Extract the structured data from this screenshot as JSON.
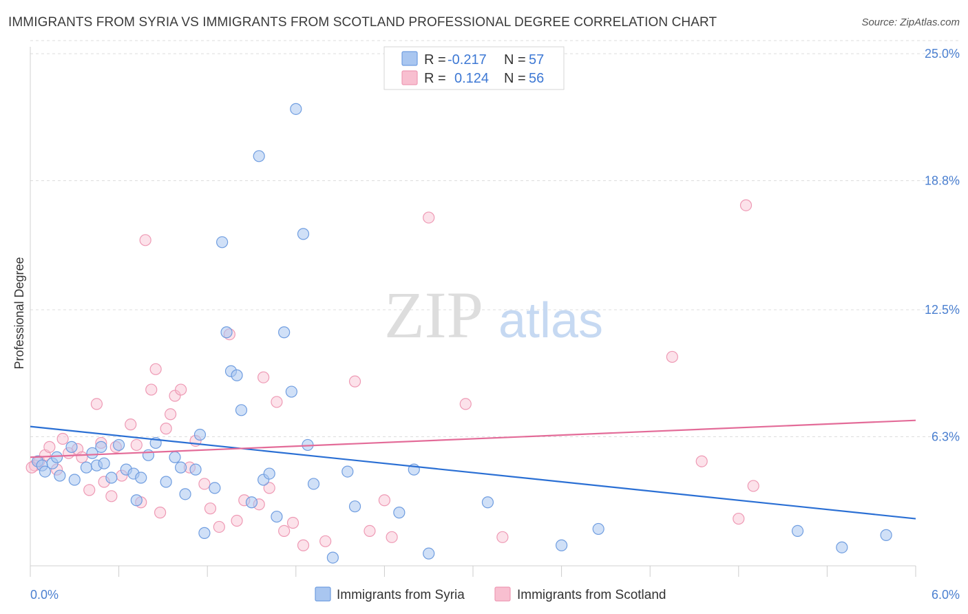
{
  "title": "IMMIGRANTS FROM SYRIA VS IMMIGRANTS FROM SCOTLAND PROFESSIONAL DEGREE CORRELATION CHART",
  "source": "Source: ZipAtlas.com",
  "watermark": {
    "zip": "ZIP",
    "atlas": "atlas"
  },
  "colors": {
    "syria_fill": "#a9c6f0",
    "syria_stroke": "#6f9de0",
    "syria_line": "#2a6fd4",
    "scotland_fill": "#f8bfd0",
    "scotland_stroke": "#ee99b4",
    "scotland_line": "#e36b98",
    "tick_text": "#4a7fd0",
    "grid": "#dcdcdc"
  },
  "legend": {
    "rows": [
      {
        "r_label": "R =",
        "r_value": "-0.217",
        "n_label": "N =",
        "n_value": "57"
      },
      {
        "r_label": "R =",
        "r_value": "0.124",
        "n_label": "N =",
        "n_value": "56"
      }
    ]
  },
  "chart_data": {
    "type": "scatter",
    "title": "IMMIGRANTS FROM SYRIA VS IMMIGRANTS FROM SCOTLAND PROFESSIONAL DEGREE CORRELATION CHART",
    "xlabel": "",
    "ylabel": "Professional Degree",
    "xlim": [
      0.0,
      6.0
    ],
    "ylim": [
      0.0,
      25.0
    ],
    "x_tick_labels": [
      "0.0%",
      "6.0%"
    ],
    "y_ticks": [
      6.3,
      12.5,
      18.8,
      25.0
    ],
    "y_tick_labels": [
      "6.3%",
      "12.5%",
      "18.8%",
      "25.0%"
    ],
    "grid": true,
    "legend_position": "top-center",
    "series": [
      {
        "name": "Immigrants from Syria",
        "trend": {
          "x": [
            0.0,
            6.0
          ],
          "y": [
            6.8,
            2.3
          ]
        },
        "points": [
          [
            0.05,
            5.1
          ],
          [
            0.08,
            4.9
          ],
          [
            0.1,
            4.6
          ],
          [
            0.15,
            5.0
          ],
          [
            0.18,
            5.3
          ],
          [
            0.2,
            4.4
          ],
          [
            0.28,
            5.8
          ],
          [
            0.3,
            4.2
          ],
          [
            0.38,
            4.8
          ],
          [
            0.42,
            5.5
          ],
          [
            0.45,
            4.9
          ],
          [
            0.48,
            5.8
          ],
          [
            0.5,
            5.0
          ],
          [
            0.55,
            4.3
          ],
          [
            0.6,
            5.9
          ],
          [
            0.65,
            4.7
          ],
          [
            0.7,
            4.5
          ],
          [
            0.72,
            3.2
          ],
          [
            0.75,
            4.3
          ],
          [
            0.8,
            5.4
          ],
          [
            0.85,
            6.0
          ],
          [
            0.92,
            4.1
          ],
          [
            0.98,
            5.3
          ],
          [
            1.02,
            4.8
          ],
          [
            1.05,
            3.5
          ],
          [
            1.12,
            4.7
          ],
          [
            1.15,
            6.4
          ],
          [
            1.18,
            1.6
          ],
          [
            1.25,
            3.8
          ],
          [
            1.3,
            15.8
          ],
          [
            1.33,
            11.4
          ],
          [
            1.36,
            9.5
          ],
          [
            1.4,
            9.3
          ],
          [
            1.43,
            7.6
          ],
          [
            1.5,
            3.1
          ],
          [
            1.55,
            20.0
          ],
          [
            1.58,
            4.2
          ],
          [
            1.62,
            4.5
          ],
          [
            1.67,
            2.4
          ],
          [
            1.72,
            11.4
          ],
          [
            1.77,
            8.5
          ],
          [
            1.8,
            22.3
          ],
          [
            1.85,
            16.2
          ],
          [
            1.88,
            5.9
          ],
          [
            1.92,
            4.0
          ],
          [
            2.05,
            0.4
          ],
          [
            2.15,
            4.6
          ],
          [
            2.2,
            2.9
          ],
          [
            2.5,
            2.6
          ],
          [
            2.6,
            4.7
          ],
          [
            2.7,
            0.6
          ],
          [
            3.1,
            3.1
          ],
          [
            3.6,
            1.0
          ],
          [
            3.85,
            1.8
          ],
          [
            5.2,
            1.7
          ],
          [
            5.5,
            0.9
          ],
          [
            5.8,
            1.5
          ]
        ]
      },
      {
        "name": "Immigrants from Scotland",
        "trend": {
          "x": [
            0.0,
            6.0
          ],
          "y": [
            5.3,
            7.1
          ]
        },
        "points": [
          [
            0.03,
            4.9
          ],
          [
            0.06,
            5.1
          ],
          [
            0.1,
            5.4
          ],
          [
            0.13,
            5.8
          ],
          [
            0.18,
            4.7
          ],
          [
            0.22,
            6.2
          ],
          [
            0.26,
            5.5
          ],
          [
            0.32,
            5.7
          ],
          [
            0.35,
            5.3
          ],
          [
            0.4,
            3.7
          ],
          [
            0.45,
            7.9
          ],
          [
            0.48,
            6.0
          ],
          [
            0.5,
            4.1
          ],
          [
            0.55,
            3.4
          ],
          [
            0.58,
            5.8
          ],
          [
            0.62,
            4.4
          ],
          [
            0.68,
            6.9
          ],
          [
            0.72,
            5.9
          ],
          [
            0.75,
            3.1
          ],
          [
            0.78,
            15.9
          ],
          [
            0.82,
            8.6
          ],
          [
            0.85,
            9.6
          ],
          [
            0.88,
            2.6
          ],
          [
            0.92,
            6.7
          ],
          [
            0.95,
            7.4
          ],
          [
            0.98,
            8.3
          ],
          [
            1.02,
            8.6
          ],
          [
            1.08,
            4.8
          ],
          [
            1.12,
            6.1
          ],
          [
            1.18,
            4.0
          ],
          [
            1.22,
            2.8
          ],
          [
            1.28,
            1.9
          ],
          [
            1.35,
            11.3
          ],
          [
            1.4,
            2.2
          ],
          [
            1.45,
            3.2
          ],
          [
            1.55,
            3.0
          ],
          [
            1.58,
            9.2
          ],
          [
            1.62,
            3.8
          ],
          [
            1.67,
            8.0
          ],
          [
            1.72,
            1.7
          ],
          [
            1.78,
            2.1
          ],
          [
            1.85,
            1.0
          ],
          [
            2.0,
            1.2
          ],
          [
            2.2,
            9.0
          ],
          [
            2.3,
            1.7
          ],
          [
            2.4,
            3.2
          ],
          [
            2.45,
            1.4
          ],
          [
            2.7,
            17.0
          ],
          [
            2.95,
            7.9
          ],
          [
            3.2,
            1.4
          ],
          [
            4.35,
            10.2
          ],
          [
            4.55,
            5.1
          ],
          [
            4.8,
            2.3
          ],
          [
            4.85,
            17.6
          ],
          [
            4.9,
            3.9
          ],
          [
            0.01,
            4.8
          ]
        ]
      }
    ]
  },
  "bottom_legend": {
    "syria_label": "Immigrants from Syria",
    "scotland_label": "Immigrants from Scotland"
  }
}
